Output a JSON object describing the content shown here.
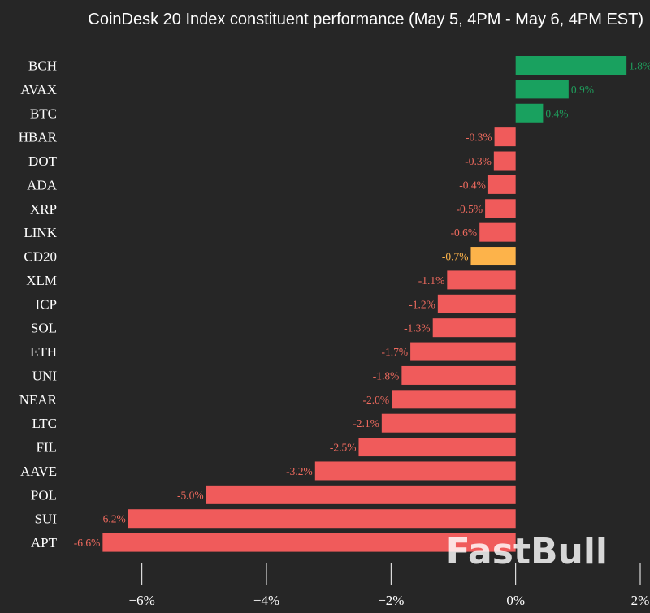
{
  "chart_data": {
    "type": "bar",
    "orientation": "horizontal",
    "title": "CoinDesk 20 Index constituent performance (May 5, 4PM - May 6, 4PM EST)",
    "xlabel": "",
    "ylabel": "",
    "xlim": [
      -7.0,
      2.0
    ],
    "x_ticks": [
      -6,
      -4,
      -2,
      0,
      2
    ],
    "x_tick_labels": [
      "−6%",
      "−4%",
      "−2%",
      "0%",
      "2%"
    ],
    "grid": false,
    "categories": [
      "BCH",
      "AVAX",
      "BTC",
      "HBAR",
      "DOT",
      "ADA",
      "XRP",
      "LINK",
      "CD20",
      "XLM",
      "ICP",
      "SOL",
      "ETH",
      "UNI",
      "NEAR",
      "LTC",
      "FIL",
      "AAVE",
      "POL",
      "SUI",
      "APT"
    ],
    "values": [
      1.78,
      0.85,
      0.44,
      -0.34,
      -0.35,
      -0.44,
      -0.49,
      -0.58,
      -0.72,
      -1.1,
      -1.25,
      -1.33,
      -1.69,
      -1.83,
      -1.99,
      -2.15,
      -2.52,
      -3.22,
      -4.97,
      -6.22,
      -6.63
    ],
    "data_labels": [
      "1.8%",
      "0.9%",
      "0.4%",
      "-0.3%",
      "-0.3%",
      "-0.4%",
      "-0.5%",
      "-0.6%",
      "-0.7%",
      "-1.1%",
      "-1.2%",
      "-1.3%",
      "-1.7%",
      "-1.8%",
      "-2.0%",
      "-2.1%",
      "-2.5%",
      "-3.2%",
      "-5.0%",
      "-6.2%",
      "-6.6%"
    ],
    "highlight_category": "CD20",
    "colors": {
      "positive_bar": "#19a15f",
      "positive_label": "#1f9e5c",
      "negative_bar": "#f05b5b",
      "negative_label": "#ee6a5e",
      "highlight_bar": "#fdb34a",
      "highlight_label": "#fdb34a",
      "background": "#262626",
      "text": "#ffffff"
    }
  },
  "watermark": "FastBull"
}
